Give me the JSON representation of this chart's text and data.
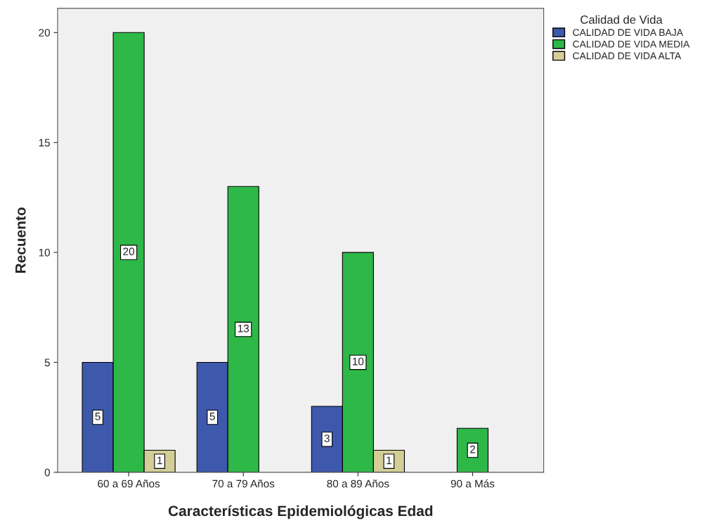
{
  "chart_data": {
    "type": "bar",
    "xlabel": "Características Epidemiológicas Edad",
    "ylabel": "Recuento",
    "legend_title": "Calidad de Vida",
    "categories": [
      "60 a 69 Años",
      "70 a 79 Años",
      "80 a 89 Años",
      "90 a Más"
    ],
    "series": [
      {
        "name": "CALIDAD DE VIDA BAJA",
        "color": "#3e58ac",
        "values": [
          5,
          5,
          3,
          null
        ]
      },
      {
        "name": "CALIDAD DE VIDA MEDIA",
        "color": "#2eb848",
        "values": [
          20,
          13,
          10,
          2
        ]
      },
      {
        "name": "CALIDAD DE VIDA ALTA",
        "color": "#d3ce97",
        "values": [
          1,
          null,
          1,
          null
        ]
      }
    ],
    "ylim": [
      0,
      21.1
    ],
    "yticks": [
      0,
      5,
      10,
      15,
      20
    ],
    "grid": false,
    "legend": "top right",
    "data_labels": true
  }
}
